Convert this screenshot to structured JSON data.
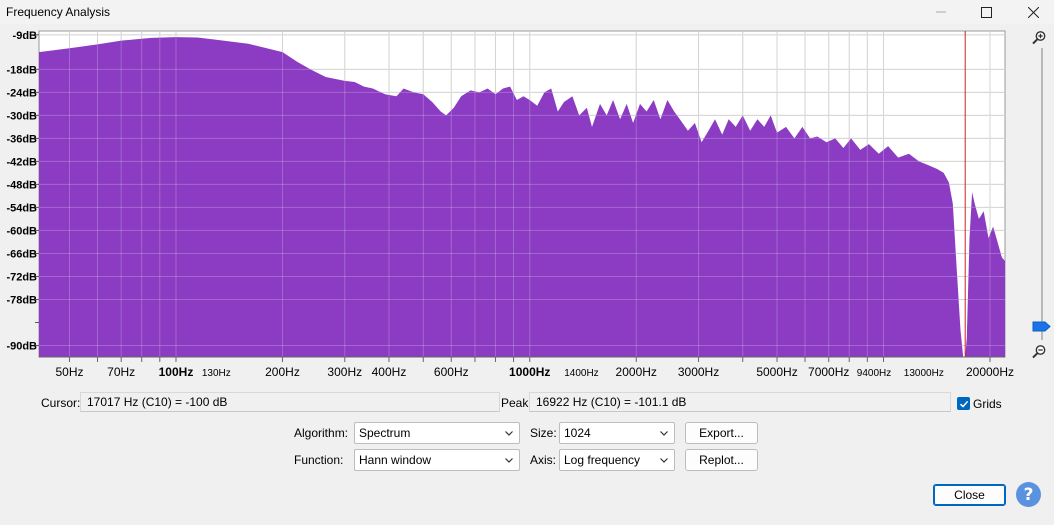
{
  "window": {
    "title": "Frequency Analysis"
  },
  "chart_data": {
    "type": "area",
    "x_scale": "log",
    "xlim": [
      41,
      22050
    ],
    "ylim": [
      -93,
      -8
    ],
    "y_ticks": [
      "-9dB",
      "-18dB",
      "-24dB",
      "-30dB",
      "-36dB",
      "-42dB",
      "-48dB",
      "-54dB",
      "-60dB",
      "-66dB",
      "-72dB",
      "-78dB",
      "-90dB"
    ],
    "x_ticks": [
      {
        "freq": 50,
        "label": "50Hz",
        "bold": false
      },
      {
        "freq": 70,
        "label": "70Hz",
        "bold": false
      },
      {
        "freq": 100,
        "label": "100Hz",
        "bold": true
      },
      {
        "freq": 130,
        "label": "130Hz",
        "bold": false,
        "small": true
      },
      {
        "freq": 200,
        "label": "200Hz",
        "bold": false
      },
      {
        "freq": 300,
        "label": "300Hz",
        "bold": false
      },
      {
        "freq": 400,
        "label": "400Hz",
        "bold": false
      },
      {
        "freq": 600,
        "label": "600Hz",
        "bold": false
      },
      {
        "freq": 1000,
        "label": "1000Hz",
        "bold": true
      },
      {
        "freq": 1400,
        "label": "1400Hz",
        "bold": false,
        "small": true
      },
      {
        "freq": 2000,
        "label": "2000Hz",
        "bold": false
      },
      {
        "freq": 3000,
        "label": "3000Hz",
        "bold": false
      },
      {
        "freq": 5000,
        "label": "5000Hz",
        "bold": false
      },
      {
        "freq": 7000,
        "label": "7000Hz",
        "bold": false
      },
      {
        "freq": 9400,
        "label": "9400Hz",
        "bold": false,
        "small": true
      },
      {
        "freq": 13000,
        "label": "13000Hz",
        "bold": false,
        "small": true
      },
      {
        "freq": 20000,
        "label": "20000Hz",
        "bold": false
      }
    ],
    "grid": true,
    "fill_color": "#8b3cc2",
    "cursor_line_color": "#d11f1f",
    "cursor_freq": 17017,
    "spectrum": [
      [
        41,
        -13.5
      ],
      [
        50,
        -12.5
      ],
      [
        60,
        -11.5
      ],
      [
        70,
        -10.5
      ],
      [
        85,
        -9.8
      ],
      [
        100,
        -9.6
      ],
      [
        115,
        -9.7
      ],
      [
        130,
        -10.3
      ],
      [
        160,
        -11.3
      ],
      [
        200,
        -13.5
      ],
      [
        220,
        -16
      ],
      [
        240,
        -18
      ],
      [
        265,
        -20
      ],
      [
        300,
        -21
      ],
      [
        320,
        -21.3
      ],
      [
        340,
        -22.5
      ],
      [
        360,
        -23
      ],
      [
        390,
        -24.5
      ],
      [
        420,
        -25
      ],
      [
        440,
        -23
      ],
      [
        470,
        -24
      ],
      [
        500,
        -24.5
      ],
      [
        530,
        -26.5
      ],
      [
        560,
        -29
      ],
      [
        580,
        -30
      ],
      [
        610,
        -28
      ],
      [
        640,
        -25
      ],
      [
        680,
        -23.5
      ],
      [
        720,
        -24
      ],
      [
        760,
        -23
      ],
      [
        800,
        -24.5
      ],
      [
        840,
        -23
      ],
      [
        880,
        -22.5
      ],
      [
        920,
        -26
      ],
      [
        960,
        -25
      ],
      [
        1000,
        -26
      ],
      [
        1050,
        -27.5
      ],
      [
        1100,
        -24
      ],
      [
        1150,
        -23
      ],
      [
        1200,
        -29
      ],
      [
        1250,
        -26.5
      ],
      [
        1320,
        -25
      ],
      [
        1380,
        -30
      ],
      [
        1450,
        -28
      ],
      [
        1500,
        -33
      ],
      [
        1580,
        -27
      ],
      [
        1650,
        -30
      ],
      [
        1720,
        -26
      ],
      [
        1800,
        -31
      ],
      [
        1880,
        -27
      ],
      [
        1960,
        -32
      ],
      [
        2050,
        -27
      ],
      [
        2140,
        -29
      ],
      [
        2240,
        -26
      ],
      [
        2340,
        -31
      ],
      [
        2450,
        -26
      ],
      [
        2560,
        -29
      ],
      [
        2680,
        -31.5
      ],
      [
        2800,
        -34
      ],
      [
        2930,
        -32
      ],
      [
        3060,
        -37
      ],
      [
        3200,
        -34
      ],
      [
        3340,
        -31
      ],
      [
        3500,
        -35
      ],
      [
        3650,
        -31
      ],
      [
        3820,
        -33
      ],
      [
        4000,
        -30
      ],
      [
        4200,
        -34
      ],
      [
        4400,
        -31
      ],
      [
        4600,
        -33
      ],
      [
        4800,
        -30
      ],
      [
        5000,
        -34.5
      ],
      [
        5300,
        -33
      ],
      [
        5600,
        -36
      ],
      [
        5900,
        -33
      ],
      [
        6200,
        -36
      ],
      [
        6500,
        -35.5
      ],
      [
        6900,
        -37
      ],
      [
        7300,
        -36
      ],
      [
        7700,
        -38.5
      ],
      [
        8100,
        -36
      ],
      [
        8600,
        -39
      ],
      [
        9100,
        -37.5
      ],
      [
        9700,
        -40
      ],
      [
        10300,
        -38
      ],
      [
        11000,
        -41
      ],
      [
        11800,
        -40
      ],
      [
        12600,
        -42
      ],
      [
        13400,
        -43
      ],
      [
        14200,
        -44
      ],
      [
        14800,
        -45
      ],
      [
        15300,
        -47.5
      ],
      [
        15700,
        -53
      ],
      [
        16100,
        -70
      ],
      [
        16500,
        -86
      ],
      [
        16800,
        -93
      ],
      [
        17017,
        -93
      ],
      [
        17200,
        -88
      ],
      [
        17500,
        -62
      ],
      [
        17800,
        -50
      ],
      [
        18100,
        -53
      ],
      [
        18600,
        -57
      ],
      [
        19200,
        -55
      ],
      [
        19800,
        -62
      ],
      [
        20400,
        -59
      ],
      [
        21000,
        -63
      ],
      [
        21600,
        -67
      ],
      [
        22050,
        -68
      ]
    ]
  },
  "readouts": {
    "cursor_label": "Cursor:",
    "cursor_value": "17017 Hz (C10) = -100 dB",
    "peak_label": "Peak:",
    "peak_value": "16922 Hz (C10) = -101.1 dB",
    "grids_label": "Grids",
    "grids_checked": true
  },
  "controls": {
    "algorithm_label": "Algorithm:",
    "algorithm_value": "Spectrum",
    "size_label": "Size:",
    "size_value": "1024",
    "export_label": "Export...",
    "function_label": "Function:",
    "function_value": "Hann window",
    "axis_label": "Axis:",
    "axis_value": "Log frequency",
    "replot_label": "Replot...",
    "close_label": "Close",
    "help_label": "?"
  },
  "icons": {
    "zoom_in": "zoom-in-icon",
    "zoom_out": "zoom-out-icon",
    "minimize": "minimize-icon",
    "maximize": "maximize-icon",
    "close": "close-icon",
    "chevron": "chevron-down-icon",
    "check": "check-icon",
    "slider_thumb": "slider-thumb-icon"
  }
}
